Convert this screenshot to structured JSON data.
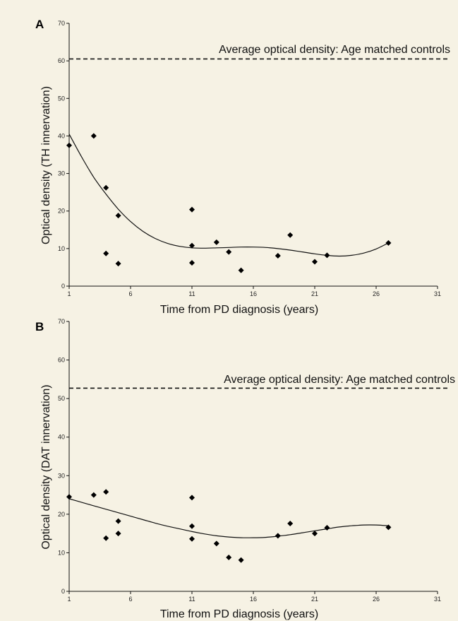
{
  "chart_data": [
    {
      "panel": "A",
      "type": "scatter",
      "xlabel": "Time from PD diagnosis (years)",
      "ylabel": "Optical density (TH innervation)",
      "xlim": [
        1,
        31
      ],
      "ylim": [
        0,
        70
      ],
      "xticks": [
        1,
        6,
        11,
        16,
        21,
        26,
        31
      ],
      "yticks": [
        0,
        10,
        20,
        30,
        40,
        50,
        60,
        70
      ],
      "reference_line": {
        "label": "Average optical density: Age matched controls",
        "y": 60.5
      },
      "points": [
        {
          "x": 1,
          "y": 37.5
        },
        {
          "x": 3,
          "y": 40
        },
        {
          "x": 4,
          "y": 26.2
        },
        {
          "x": 4,
          "y": 8.7
        },
        {
          "x": 5,
          "y": 18.8
        },
        {
          "x": 5,
          "y": 6
        },
        {
          "x": 11,
          "y": 20.4
        },
        {
          "x": 11,
          "y": 10.8
        },
        {
          "x": 11,
          "y": 6.2
        },
        {
          "x": 13,
          "y": 11.7
        },
        {
          "x": 14,
          "y": 9.1
        },
        {
          "x": 15,
          "y": 4.2
        },
        {
          "x": 18,
          "y": 8.1
        },
        {
          "x": 19,
          "y": 13.6
        },
        {
          "x": 21,
          "y": 6.5
        },
        {
          "x": 22,
          "y": 8.2
        },
        {
          "x": 27,
          "y": 11.5
        }
      ],
      "trendline": [
        {
          "x": 1,
          "y": 40.5
        },
        {
          "x": 2,
          "y": 34.5
        },
        {
          "x": 3,
          "y": 29
        },
        {
          "x": 4,
          "y": 24.5
        },
        {
          "x": 5,
          "y": 20.5
        },
        {
          "x": 6,
          "y": 17.2
        },
        {
          "x": 7,
          "y": 14.6
        },
        {
          "x": 8,
          "y": 12.7
        },
        {
          "x": 9,
          "y": 11.4
        },
        {
          "x": 10,
          "y": 10.6
        },
        {
          "x": 11,
          "y": 10.2
        },
        {
          "x": 12,
          "y": 10.1
        },
        {
          "x": 13,
          "y": 10.2
        },
        {
          "x": 14,
          "y": 10.3
        },
        {
          "x": 15,
          "y": 10.4
        },
        {
          "x": 16,
          "y": 10.4
        },
        {
          "x": 17,
          "y": 10.3
        },
        {
          "x": 18,
          "y": 10
        },
        {
          "x": 19,
          "y": 9.6
        },
        {
          "x": 20,
          "y": 9.1
        },
        {
          "x": 21,
          "y": 8.6
        },
        {
          "x": 22,
          "y": 8.2
        },
        {
          "x": 23,
          "y": 8
        },
        {
          "x": 24,
          "y": 8.2
        },
        {
          "x": 25,
          "y": 8.8
        },
        {
          "x": 26,
          "y": 9.9
        },
        {
          "x": 27,
          "y": 11.5
        }
      ]
    },
    {
      "panel": "B",
      "type": "scatter",
      "xlabel": "Time from PD diagnosis (years)",
      "ylabel": "Optical density (DAT innervation)",
      "xlim": [
        1,
        31
      ],
      "ylim": [
        0,
        70
      ],
      "xticks": [
        1,
        6,
        11,
        16,
        21,
        26,
        31
      ],
      "yticks": [
        0,
        10,
        20,
        30,
        40,
        50,
        60,
        70
      ],
      "reference_line": {
        "label": "Average optical density: Age matched controls",
        "y": 52.7
      },
      "points": [
        {
          "x": 1,
          "y": 24.5
        },
        {
          "x": 3,
          "y": 25
        },
        {
          "x": 4,
          "y": 25.8
        },
        {
          "x": 4,
          "y": 13.8
        },
        {
          "x": 5,
          "y": 18.2
        },
        {
          "x": 5,
          "y": 15
        },
        {
          "x": 11,
          "y": 24.3
        },
        {
          "x": 11,
          "y": 16.9
        },
        {
          "x": 11,
          "y": 13.6
        },
        {
          "x": 13,
          "y": 12.4
        },
        {
          "x": 14,
          "y": 8.8
        },
        {
          "x": 15,
          "y": 8.1
        },
        {
          "x": 18,
          "y": 14.4
        },
        {
          "x": 19,
          "y": 17.6
        },
        {
          "x": 21,
          "y": 15
        },
        {
          "x": 22,
          "y": 16.5
        },
        {
          "x": 27,
          "y": 16.6
        }
      ],
      "trendline": [
        {
          "x": 1,
          "y": 24
        },
        {
          "x": 2,
          "y": 23.1
        },
        {
          "x": 3,
          "y": 22.2
        },
        {
          "x": 4,
          "y": 21.3
        },
        {
          "x": 5,
          "y": 20.4
        },
        {
          "x": 6,
          "y": 19.5
        },
        {
          "x": 7,
          "y": 18.6
        },
        {
          "x": 8,
          "y": 17.7
        },
        {
          "x": 9,
          "y": 16.9
        },
        {
          "x": 10,
          "y": 16.2
        },
        {
          "x": 11,
          "y": 15.5
        },
        {
          "x": 12,
          "y": 14.9
        },
        {
          "x": 13,
          "y": 14.4
        },
        {
          "x": 14,
          "y": 14.1
        },
        {
          "x": 15,
          "y": 13.9
        },
        {
          "x": 16,
          "y": 13.9
        },
        {
          "x": 17,
          "y": 14
        },
        {
          "x": 18,
          "y": 14.3
        },
        {
          "x": 19,
          "y": 14.7
        },
        {
          "x": 20,
          "y": 15.2
        },
        {
          "x": 21,
          "y": 15.7
        },
        {
          "x": 22,
          "y": 16.2
        },
        {
          "x": 23,
          "y": 16.7
        },
        {
          "x": 24,
          "y": 17
        },
        {
          "x": 25,
          "y": 17.2
        },
        {
          "x": 26,
          "y": 17.2
        },
        {
          "x": 27,
          "y": 17
        }
      ]
    }
  ]
}
